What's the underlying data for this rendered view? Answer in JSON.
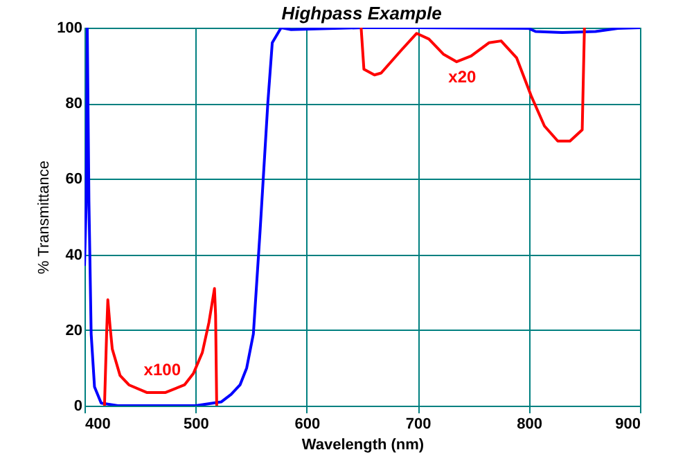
{
  "chart_data": {
    "type": "line",
    "title": "Highpass Example",
    "xlabel": "Wavelength (nm)",
    "ylabel": "% Transmittance",
    "xlim": [
      400,
      900
    ],
    "xticks": [
      400,
      500,
      600,
      700,
      800,
      900
    ],
    "ylim": [
      0,
      100
    ],
    "yticks": [
      0,
      20,
      40,
      60,
      80,
      100
    ],
    "grid": true,
    "series": [
      {
        "color": "#0000ff",
        "x": [
          400,
          401.5,
          402.5,
          404,
          406,
          409,
          415,
          430,
          500,
          523,
          532,
          540,
          546,
          552,
          558,
          565,
          569,
          577,
          586,
          650,
          700,
          800,
          806,
          830,
          860,
          880,
          900
        ],
        "values": [
          37,
          53,
          100,
          54,
          19,
          5,
          0.7,
          0,
          0,
          1,
          3,
          5.5,
          10,
          19,
          46,
          80,
          96,
          100,
          99.5,
          100,
          100,
          99.8,
          99,
          98.7,
          99,
          99.8,
          100
        ]
      },
      {
        "color": "#ff0000",
        "x": [
          418,
          420,
          421,
          423,
          425,
          432,
          440,
          456,
          473,
          490,
          498,
          506,
          512,
          517,
          518,
          519
        ],
        "values": [
          0,
          20,
          28,
          21,
          15,
          8,
          5.5,
          3.5,
          3.5,
          5.5,
          8.5,
          14,
          22,
          31,
          24,
          0
        ]
      },
      {
        "color": "#ff0000",
        "x": [
          649,
          651.5,
          661,
          667,
          685,
          699,
          710,
          723,
          735,
          748,
          764,
          775,
          789,
          802,
          814,
          826,
          837,
          848,
          850
        ],
        "values": [
          100,
          89,
          87.5,
          88,
          94,
          98.5,
          97,
          93,
          91,
          92.5,
          96,
          96.5,
          92,
          82,
          74,
          70,
          70,
          73,
          100
        ]
      }
    ],
    "annotations": [
      "x100",
      "x20"
    ]
  }
}
